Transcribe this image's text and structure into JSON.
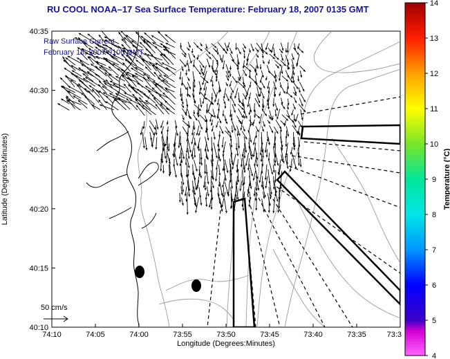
{
  "title": "RU COOL  NOAA–17  Sea Surface Temperature:  February 18, 2007 0135 GMT",
  "overlay": {
    "line1": "Raw Surface Current",
    "line2": "February 18, 2007 0100 GMT"
  },
  "scale_label": "50 cm/s",
  "axes": {
    "xlabel": "Longitude (Degrees:Minutes)",
    "ylabel": "Latitude (Degrees:Minutes)",
    "x_ticks": [
      "74:10",
      "74:05",
      "74:00",
      "73:55",
      "73:50",
      "73:45",
      "73:40",
      "73:35",
      "73:3"
    ],
    "y_ticks": [
      "40:35",
      "40:30",
      "40:25",
      "40:20",
      "40:15",
      "40:10"
    ]
  },
  "colorbar": {
    "label": "Temperature (°C)",
    "min": 4,
    "max": 14,
    "ticks": [
      "4",
      "5",
      "6",
      "7",
      "8",
      "9",
      "10",
      "11",
      "12",
      "13",
      "14"
    ]
  },
  "colors": {
    "title": "#1414a0",
    "land_line": "#000000",
    "bathymetry": "#9a9a9a"
  }
}
